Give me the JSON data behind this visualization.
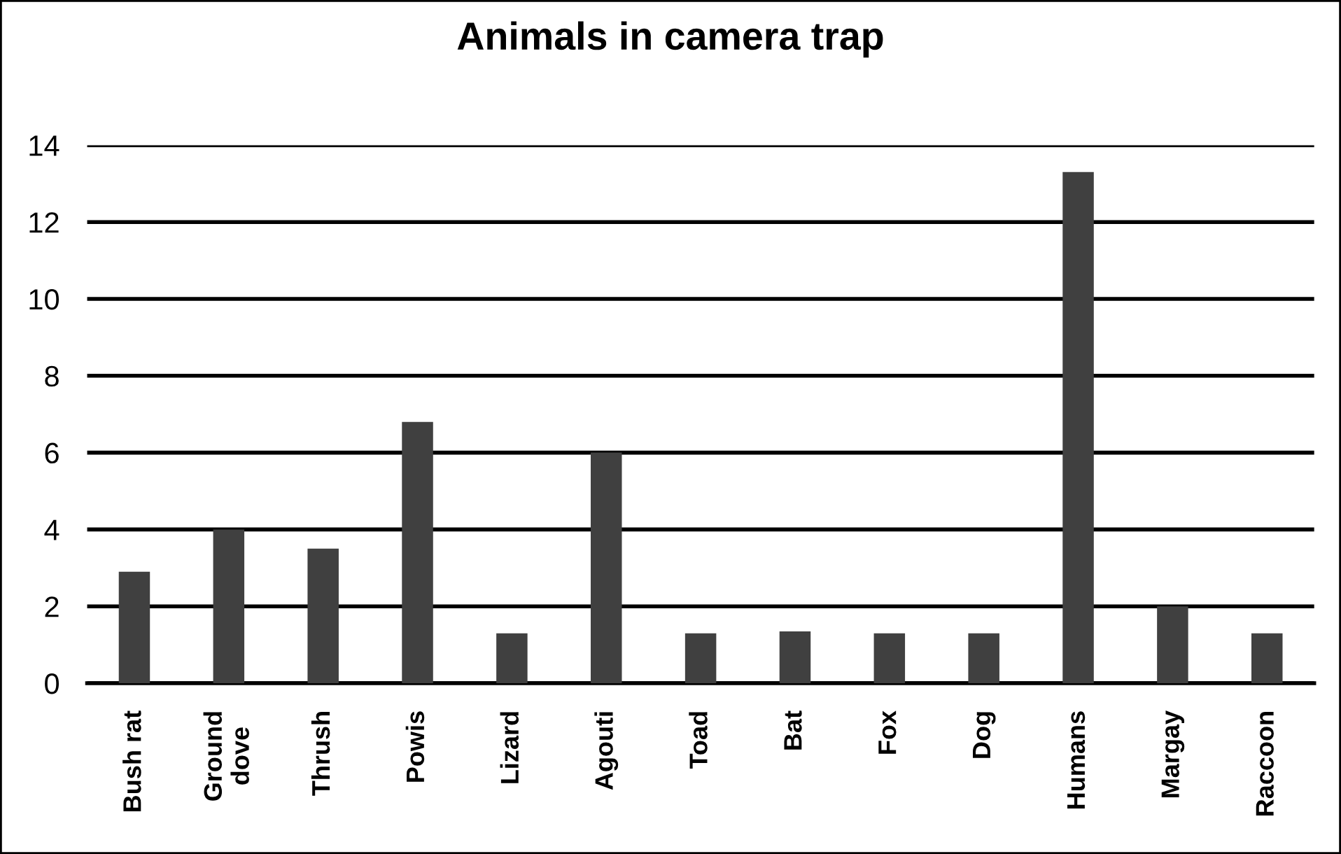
{
  "chart_data": {
    "type": "bar",
    "title": "Animals in camera trap",
    "categories": [
      "Bush rat",
      "Ground\ndove",
      "Thrush",
      "Powis",
      "Lizard",
      "Agouti",
      "Toad",
      "Bat",
      "Fox",
      "Dog",
      "Humans",
      "Margay",
      "Raccoon"
    ],
    "values": [
      2.9,
      4.0,
      3.5,
      6.8,
      1.3,
      6.0,
      1.3,
      1.35,
      1.3,
      1.3,
      13.3,
      2.0,
      1.3
    ],
    "color": "#404040",
    "ylim": [
      0,
      14
    ],
    "yticks": [
      0,
      2,
      4,
      6,
      8,
      10,
      12,
      14
    ],
    "grid": "y"
  }
}
